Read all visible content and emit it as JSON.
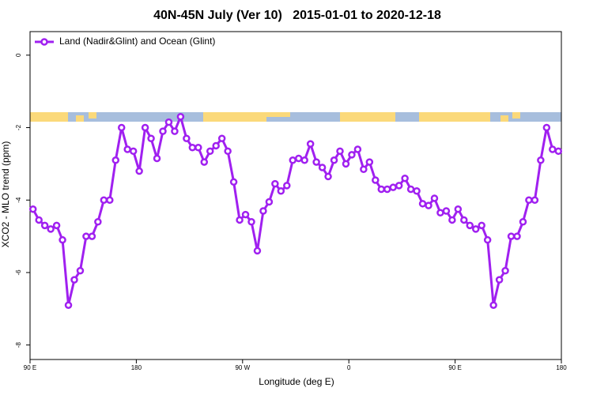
{
  "chart_data": {
    "type": "line",
    "title": "40N-45N July (Ver 10)   2015-01-01 to 2020-12-18",
    "x_label": "Longitude (deg E)",
    "y_label": "XCO2 - MLO trend (ppm)",
    "x": [
      92.5,
      97.5,
      102.5,
      107.5,
      112.5,
      117.5,
      122.5,
      127.5,
      132.5,
      137.5,
      142.5,
      147.5,
      152.5,
      157.5,
      162.5,
      167.5,
      172.5,
      177.5,
      182.5,
      187.5,
      192.5,
      197.5,
      202.5,
      207.5,
      212.5,
      217.5,
      222.5,
      227.5,
      232.5,
      237.5,
      242.5,
      247.5,
      252.5,
      257.5,
      262.5,
      267.5,
      272.5,
      277.5,
      282.5,
      287.5,
      292.5,
      297.5,
      302.5,
      307.5,
      312.5,
      317.5,
      322.5,
      327.5,
      332.5,
      337.5,
      342.5,
      347.5,
      352.5,
      357.5,
      362.5,
      367.5,
      372.5,
      377.5,
      382.5,
      387.5,
      392.5,
      397.5,
      402.5,
      407.5,
      412.5,
      417.5,
      422.5,
      427.5,
      432.5,
      437.5,
      442.5,
      447.5,
      452.5,
      457.5,
      462.5,
      467.5,
      472.5,
      477.5,
      482.5,
      487.5,
      492.5,
      497.5,
      502.5,
      507.5,
      512.5,
      517.5,
      522.5,
      527.5,
      532.5,
      537.5
    ],
    "series": [
      {
        "name": "Land (Nadir&Glint) and Ocean (Glint)",
        "color": "#a020f0",
        "values": [
          -4.25,
          -4.55,
          -4.7,
          -4.8,
          -4.7,
          -5.1,
          -6.9,
          -6.2,
          -5.95,
          -5.0,
          -5.0,
          -4.6,
          -4.0,
          -4.0,
          -2.9,
          -2.0,
          -2.6,
          -2.65,
          -3.2,
          -2.0,
          -2.3,
          -2.85,
          -2.1,
          -1.85,
          -2.1,
          -1.7,
          -2.3,
          -2.55,
          -2.55,
          -2.95,
          -2.65,
          -2.5,
          -2.3,
          -2.65,
          -3.5,
          -4.55,
          -4.4,
          -4.6,
          -5.4,
          -4.3,
          -4.05,
          -3.55,
          -3.75,
          -3.6,
          -2.9,
          -2.85,
          -2.9,
          -2.45,
          -2.95,
          -3.1,
          -3.35,
          -2.9,
          -2.65,
          -3.0,
          -2.75,
          -2.6,
          -3.15,
          -2.95,
          -3.45,
          -3.7,
          -3.7,
          -3.65,
          -3.6,
          -3.4,
          -3.7,
          -3.75,
          -4.1,
          -4.15,
          -3.95,
          -4.35,
          -4.3,
          -4.55,
          -4.25,
          -4.55,
          -4.7,
          -4.8,
          -4.7,
          -5.1,
          -6.9,
          -6.2,
          -5.95,
          -5.0,
          -5.0,
          -4.6,
          -4.0,
          -4.0,
          -2.9,
          -2.0,
          -2.6,
          -2.65
        ]
      }
    ],
    "xlim": [
      90,
      540
    ],
    "xticks": [
      {
        "value": 90,
        "label": "90 E"
      },
      180,
      {
        "value": 270,
        "label": "90 W"
      },
      {
        "value": 360,
        "label": "0"
      },
      {
        "value": 450,
        "label": "90 E"
      },
      {
        "value": 540,
        "label": "180"
      }
    ],
    "ylim": [
      -8.4,
      0.65
    ],
    "yticks": [
      0,
      -2,
      -4,
      -6,
      -8
    ],
    "grid": false,
    "legend": "top-left"
  }
}
